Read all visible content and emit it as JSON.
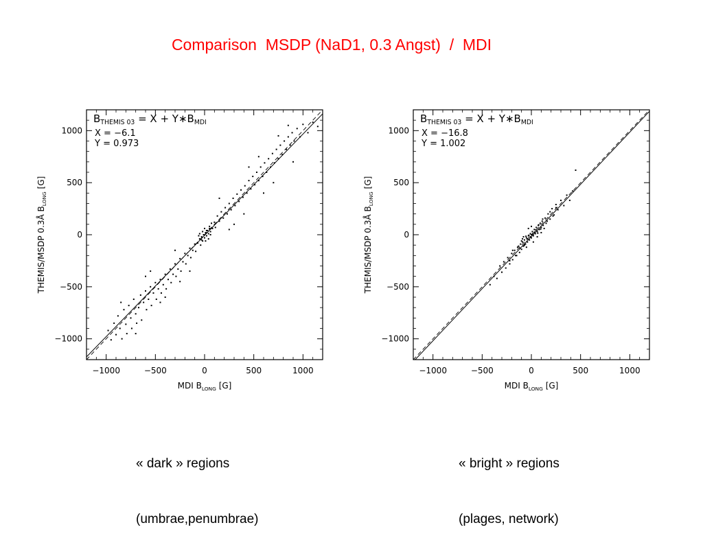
{
  "slide": {
    "title": "Comparison  MSDP (NaD1, 0.3 Angst)  /  MDI",
    "caption_left": [
      "« dark » regions",
      "(umbrae,penumbrae)"
    ],
    "caption_right": [
      "« bright » regions",
      "(plages, network)"
    ]
  },
  "chart_data": [
    {
      "type": "scatter",
      "title": "",
      "equation": {
        "lhs_main": "B",
        "lhs_sub": "THEMIS 03",
        "rhs": " = X + Y∗B",
        "rhs_sub": "MDI"
      },
      "params": {
        "x_label": "X =",
        "x_value": "−6.1",
        "y_label": "Y =",
        "y_value": "0.973"
      },
      "fit": {
        "intercept": -6.1,
        "slope": 0.973
      },
      "xlabel": {
        "main": "MDI B",
        "sub": "LONG",
        "unit": " [G]"
      },
      "ylabel": {
        "main": "THEMIS/MSDP 0.3Å B",
        "sub": "LONG",
        "unit": " [G]"
      },
      "xlim": [
        -1200,
        1200
      ],
      "ylim": [
        -1200,
        1200
      ],
      "xticks": [
        -1000,
        -500,
        0,
        500,
        1000
      ],
      "yticks": [
        -1000,
        -500,
        0,
        500,
        1000
      ],
      "tick_labels": [
        "−1000",
        "−500",
        "0",
        "500",
        "1000"
      ],
      "series": [
        {
          "description_visible": false,
          "points": [
            [
              -980,
              -920
            ],
            [
              -950,
              -1010
            ],
            [
              -920,
              -850
            ],
            [
              -900,
              -960
            ],
            [
              -880,
              -780
            ],
            [
              -860,
              -900
            ],
            [
              -840,
              -1000
            ],
            [
              -820,
              -720
            ],
            [
              -800,
              -860
            ],
            [
              -790,
              -950
            ],
            [
              -770,
              -680
            ],
            [
              -750,
              -800
            ],
            [
              -740,
              -900
            ],
            [
              -720,
              -620
            ],
            [
              -700,
              -760
            ],
            [
              -690,
              -850
            ],
            [
              -670,
              -700
            ],
            [
              -650,
              -580
            ],
            [
              -640,
              -820
            ],
            [
              -620,
              -650
            ],
            [
              -600,
              -540
            ],
            [
              -590,
              -720
            ],
            [
              -570,
              -620
            ],
            [
              -550,
              -500
            ],
            [
              -540,
              -680
            ],
            [
              -520,
              -560
            ],
            [
              -500,
              -460
            ],
            [
              -490,
              -620
            ],
            [
              -470,
              -520
            ],
            [
              -450,
              -430
            ],
            [
              -440,
              -560
            ],
            [
              -420,
              -480
            ],
            [
              -400,
              -380
            ],
            [
              -390,
              -520
            ],
            [
              -370,
              -430
            ],
            [
              -350,
              -330
            ],
            [
              -340,
              -460
            ],
            [
              -320,
              -380
            ],
            [
              -300,
              -280
            ],
            [
              -290,
              -400
            ],
            [
              -270,
              -330
            ],
            [
              -250,
              -230
            ],
            [
              -240,
              -350
            ],
            [
              -220,
              -260
            ],
            [
              -200,
              -180
            ],
            [
              -190,
              -280
            ],
            [
              -170,
              -200
            ],
            [
              -150,
              -130
            ],
            [
              -140,
              -220
            ],
            [
              -120,
              -150
            ],
            [
              -100,
              -90
            ],
            [
              -90,
              -160
            ],
            [
              -70,
              -80
            ],
            [
              -50,
              -40
            ],
            [
              -40,
              -100
            ],
            [
              -30,
              -20
            ],
            [
              -20,
              -60
            ],
            [
              -10,
              0
            ],
            [
              0,
              -30
            ],
            [
              10,
              20
            ],
            [
              20,
              -10
            ],
            [
              30,
              40
            ],
            [
              40,
              10
            ],
            [
              50,
              80
            ],
            [
              60,
              30
            ],
            [
              70,
              110
            ],
            [
              80,
              60
            ],
            [
              100,
              120
            ],
            [
              110,
              70
            ],
            [
              130,
              180
            ],
            [
              150,
              130
            ],
            [
              170,
              220
            ],
            [
              190,
              160
            ],
            [
              210,
              260
            ],
            [
              230,
              200
            ],
            [
              250,
              300
            ],
            [
              270,
              240
            ],
            [
              290,
              350
            ],
            [
              310,
              280
            ],
            [
              330,
              390
            ],
            [
              350,
              320
            ],
            [
              370,
              430
            ],
            [
              390,
              360
            ],
            [
              410,
              470
            ],
            [
              430,
              400
            ],
            [
              450,
              520
            ],
            [
              470,
              440
            ],
            [
              490,
              560
            ],
            [
              510,
              480
            ],
            [
              530,
              600
            ],
            [
              550,
              520
            ],
            [
              570,
              650
            ],
            [
              590,
              560
            ],
            [
              610,
              690
            ],
            [
              630,
              600
            ],
            [
              650,
              730
            ],
            [
              670,
              650
            ],
            [
              690,
              780
            ],
            [
              710,
              690
            ],
            [
              730,
              820
            ],
            [
              750,
              730
            ],
            [
              770,
              860
            ],
            [
              790,
              770
            ],
            [
              810,
              900
            ],
            [
              830,
              820
            ],
            [
              850,
              940
            ],
            [
              870,
              860
            ],
            [
              890,
              980
            ],
            [
              910,
              900
            ],
            [
              940,
              1020
            ],
            [
              970,
              940
            ],
            [
              1000,
              1060
            ],
            [
              1050,
              980
            ],
            [
              1100,
              1080
            ],
            [
              1150,
              1040
            ],
            [
              -600,
              -400
            ],
            [
              -450,
              -650
            ],
            [
              -300,
              -150
            ],
            [
              -150,
              -350
            ],
            [
              150,
              350
            ],
            [
              300,
              100
            ],
            [
              450,
              650
            ],
            [
              600,
              400
            ],
            [
              750,
              950
            ],
            [
              900,
              700
            ],
            [
              -850,
              -650
            ],
            [
              -700,
              -950
            ],
            [
              -550,
              -350
            ],
            [
              -400,
              -600
            ],
            [
              -250,
              -450
            ],
            [
              250,
              50
            ],
            [
              400,
              200
            ],
            [
              550,
              750
            ],
            [
              700,
              500
            ],
            [
              850,
              1050
            ],
            [
              0,
              60
            ],
            [
              10,
              -60
            ],
            [
              -20,
              30
            ],
            [
              40,
              -40
            ],
            [
              -50,
              10
            ],
            [
              60,
              0
            ],
            [
              -60,
              -10
            ],
            [
              20,
              40
            ],
            [
              -30,
              -50
            ],
            [
              50,
              60
            ]
          ]
        }
      ]
    },
    {
      "type": "scatter",
      "title": "",
      "equation": {
        "lhs_main": "B",
        "lhs_sub": "THEMIS 03",
        "rhs": " = X + Y∗B",
        "rhs_sub": "MDI"
      },
      "params": {
        "x_label": "X =",
        "x_value": "−16.8",
        "y_label": "Y =",
        "y_value": "1.002"
      },
      "fit": {
        "intercept": -16.8,
        "slope": 1.002
      },
      "xlabel": {
        "main": "MDI B",
        "sub": "LONG",
        "unit": " [G]"
      },
      "ylabel": {
        "main": "THEMIS/MSDP 0.3Å B",
        "sub": "LONG",
        "unit": " [G]"
      },
      "xlim": [
        -1200,
        1200
      ],
      "ylim": [
        -1200,
        1200
      ],
      "xticks": [
        -1000,
        -500,
        0,
        500,
        1000
      ],
      "yticks": [
        -1000,
        -500,
        0,
        500,
        1000
      ],
      "tick_labels": [
        "−1000",
        "−500",
        "0",
        "500",
        "1000"
      ],
      "series": [
        {
          "description_visible": false,
          "points": [
            [
              -420,
              -480
            ],
            [
              -380,
              -400
            ],
            [
              -350,
              -420
            ],
            [
              -320,
              -300
            ],
            [
              -300,
              -360
            ],
            [
              -280,
              -260
            ],
            [
              -260,
              -320
            ],
            [
              -240,
              -220
            ],
            [
              -220,
              -280
            ],
            [
              -200,
              -180
            ],
            [
              -190,
              -240
            ],
            [
              -170,
              -150
            ],
            [
              -150,
              -200
            ],
            [
              -140,
              -120
            ],
            [
              -120,
              -170
            ],
            [
              -110,
              -90
            ],
            [
              -100,
              -140
            ],
            [
              -90,
              -70
            ],
            [
              -80,
              -110
            ],
            [
              -70,
              -50
            ],
            [
              -60,
              -90
            ],
            [
              -50,
              -30
            ],
            [
              -40,
              -70
            ],
            [
              -30,
              -10
            ],
            [
              -20,
              -50
            ],
            [
              -10,
              10
            ],
            [
              0,
              -30
            ],
            [
              10,
              30
            ],
            [
              20,
              -10
            ],
            [
              30,
              50
            ],
            [
              40,
              10
            ],
            [
              50,
              70
            ],
            [
              60,
              30
            ],
            [
              70,
              90
            ],
            [
              80,
              50
            ],
            [
              90,
              110
            ],
            [
              100,
              70
            ],
            [
              110,
              130
            ],
            [
              120,
              90
            ],
            [
              140,
              160
            ],
            [
              150,
              110
            ],
            [
              170,
              200
            ],
            [
              190,
              150
            ],
            [
              210,
              250
            ],
            [
              230,
              190
            ],
            [
              250,
              290
            ],
            [
              270,
              240
            ],
            [
              300,
              330
            ],
            [
              330,
              280
            ],
            [
              360,
              380
            ],
            [
              390,
              330
            ],
            [
              420,
              420
            ],
            [
              450,
              620
            ],
            [
              -30,
              60
            ],
            [
              0,
              80
            ],
            [
              20,
              -70
            ],
            [
              -50,
              -120
            ],
            [
              60,
              -20
            ],
            [
              -80,
              -20
            ],
            [
              100,
              20
            ],
            [
              -100,
              -60
            ],
            [
              130,
              60
            ],
            [
              -130,
              -110
            ],
            [
              160,
              130
            ],
            [
              -160,
              -200
            ],
            [
              190,
              220
            ],
            [
              -190,
              -150
            ],
            [
              220,
              180
            ],
            [
              -220,
              -250
            ],
            [
              250,
              260
            ],
            [
              0,
              0
            ],
            [
              -10,
              -20
            ],
            [
              15,
              5
            ],
            [
              -25,
              -5
            ],
            [
              35,
              25
            ],
            [
              -40,
              -40
            ],
            [
              45,
              45
            ],
            [
              -55,
              -15
            ],
            [
              65,
              15
            ],
            [
              -70,
              -100
            ],
            [
              75,
              95
            ],
            [
              -90,
              -40
            ],
            [
              95,
              55
            ],
            [
              -115,
              -130
            ],
            [
              115,
              150
            ]
          ]
        }
      ]
    }
  ]
}
